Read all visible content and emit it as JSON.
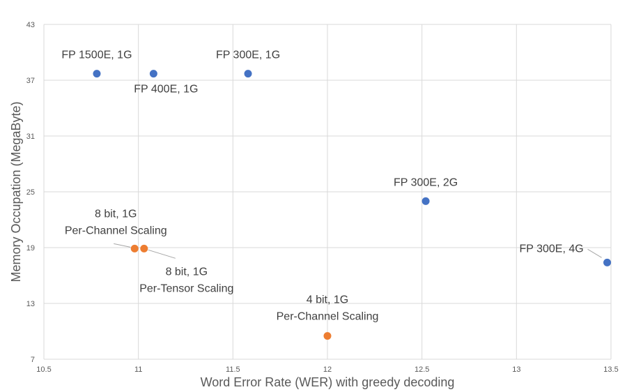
{
  "chart_data": {
    "type": "scatter",
    "title": "",
    "xlabel": "Word Error Rate (WER) with greedy decoding",
    "ylabel": "Memory Occupation (MegaByte)",
    "xlim": [
      10.5,
      13.5
    ],
    "ylim": [
      7,
      43
    ],
    "x_ticks": [
      10.5,
      11,
      11.5,
      12,
      12.5,
      13,
      13.5
    ],
    "x_tick_labels": [
      "10.5",
      "11",
      "11.5",
      "12",
      "12.5",
      "13",
      "13.5"
    ],
    "y_ticks": [
      7,
      13,
      19,
      25,
      31,
      37,
      43
    ],
    "y_tick_labels": [
      "7",
      "13",
      "19",
      "25",
      "31",
      "37",
      "43"
    ],
    "grid": true,
    "legend": "none",
    "series": [
      {
        "color": "#4472C4",
        "points": [
          {
            "x": 10.78,
            "y": 37.7,
            "label": [
              "FP 1500E, 1G"
            ]
          },
          {
            "x": 11.08,
            "y": 37.7,
            "label": [
              "FP 400E, 1G"
            ]
          },
          {
            "x": 11.58,
            "y": 37.7,
            "label": [
              "FP 300E, 1G"
            ]
          },
          {
            "x": 12.52,
            "y": 24.0,
            "label": [
              "FP 300E, 2G"
            ]
          },
          {
            "x": 13.48,
            "y": 17.4,
            "label": [
              "FP 300E, 4G"
            ]
          }
        ]
      },
      {
        "color": "#ED7D31",
        "points": [
          {
            "x": 10.98,
            "y": 18.9,
            "label": [
              "8 bit, 1G",
              "Per-Channel Scaling"
            ]
          },
          {
            "x": 11.03,
            "y": 18.9,
            "label": [
              "8 bit, 1G",
              "Per-Tensor Scaling"
            ]
          },
          {
            "x": 12.0,
            "y": 9.5,
            "label": [
              "4 bit, 1G",
              "Per-Channel Scaling"
            ]
          }
        ]
      }
    ]
  }
}
